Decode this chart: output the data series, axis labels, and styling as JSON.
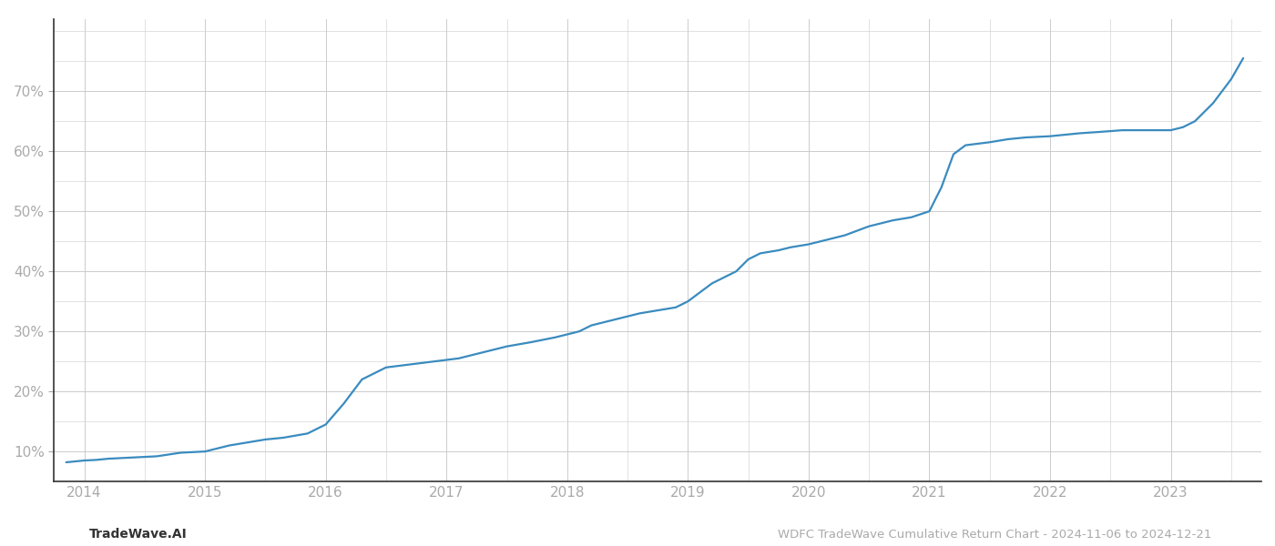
{
  "title": "WDFC TradeWave Cumulative Return Chart - 2024-11-06 to 2024-12-21",
  "left_label": "TradeWave.AI",
  "line_color": "#3a8bbf",
  "background_color": "#ffffff",
  "grid_color": "#cccccc",
  "x_values": [
    2013.85,
    2014.0,
    2014.1,
    2014.2,
    2014.4,
    2014.6,
    2014.8,
    2015.0,
    2015.1,
    2015.2,
    2015.35,
    2015.5,
    2015.65,
    2015.85,
    2016.0,
    2016.15,
    2016.3,
    2016.5,
    2016.7,
    2016.9,
    2017.1,
    2017.3,
    2017.5,
    2017.7,
    2017.9,
    2018.0,
    2018.1,
    2018.2,
    2018.3,
    2018.5,
    2018.6,
    2018.75,
    2018.9,
    2019.0,
    2019.1,
    2019.2,
    2019.4,
    2019.5,
    2019.6,
    2019.75,
    2019.85,
    2020.0,
    2020.1,
    2020.2,
    2020.3,
    2020.5,
    2020.6,
    2020.7,
    2020.85,
    2021.0,
    2021.1,
    2021.2,
    2021.3,
    2021.5,
    2021.65,
    2021.8,
    2022.0,
    2022.1,
    2022.25,
    2022.4,
    2022.6,
    2022.75,
    2022.9,
    2023.0,
    2023.1,
    2023.2,
    2023.35,
    2023.5,
    2023.6
  ],
  "y_values": [
    8.2,
    8.5,
    8.6,
    8.8,
    9.0,
    9.2,
    9.8,
    10.0,
    10.5,
    11.0,
    11.5,
    12.0,
    12.3,
    13.0,
    14.5,
    18.0,
    22.0,
    24.0,
    24.5,
    25.0,
    25.5,
    26.5,
    27.5,
    28.2,
    29.0,
    29.5,
    30.0,
    31.0,
    31.5,
    32.5,
    33.0,
    33.5,
    34.0,
    35.0,
    36.5,
    38.0,
    40.0,
    42.0,
    43.0,
    43.5,
    44.0,
    44.5,
    45.0,
    45.5,
    46.0,
    47.5,
    48.0,
    48.5,
    49.0,
    50.0,
    54.0,
    59.5,
    61.0,
    61.5,
    62.0,
    62.3,
    62.5,
    62.7,
    63.0,
    63.2,
    63.5,
    63.5,
    63.5,
    63.5,
    64.0,
    65.0,
    68.0,
    72.0,
    75.5
  ],
  "xlim": [
    2013.75,
    2023.75
  ],
  "ylim": [
    5,
    82
  ],
  "yticks": [
    10,
    20,
    30,
    40,
    50,
    60,
    70
  ],
  "xticks": [
    2014,
    2015,
    2016,
    2017,
    2018,
    2019,
    2020,
    2021,
    2022,
    2023
  ],
  "tick_label_color": "#aaaaaa",
  "axis_color": "#333333",
  "linewidth": 1.6
}
